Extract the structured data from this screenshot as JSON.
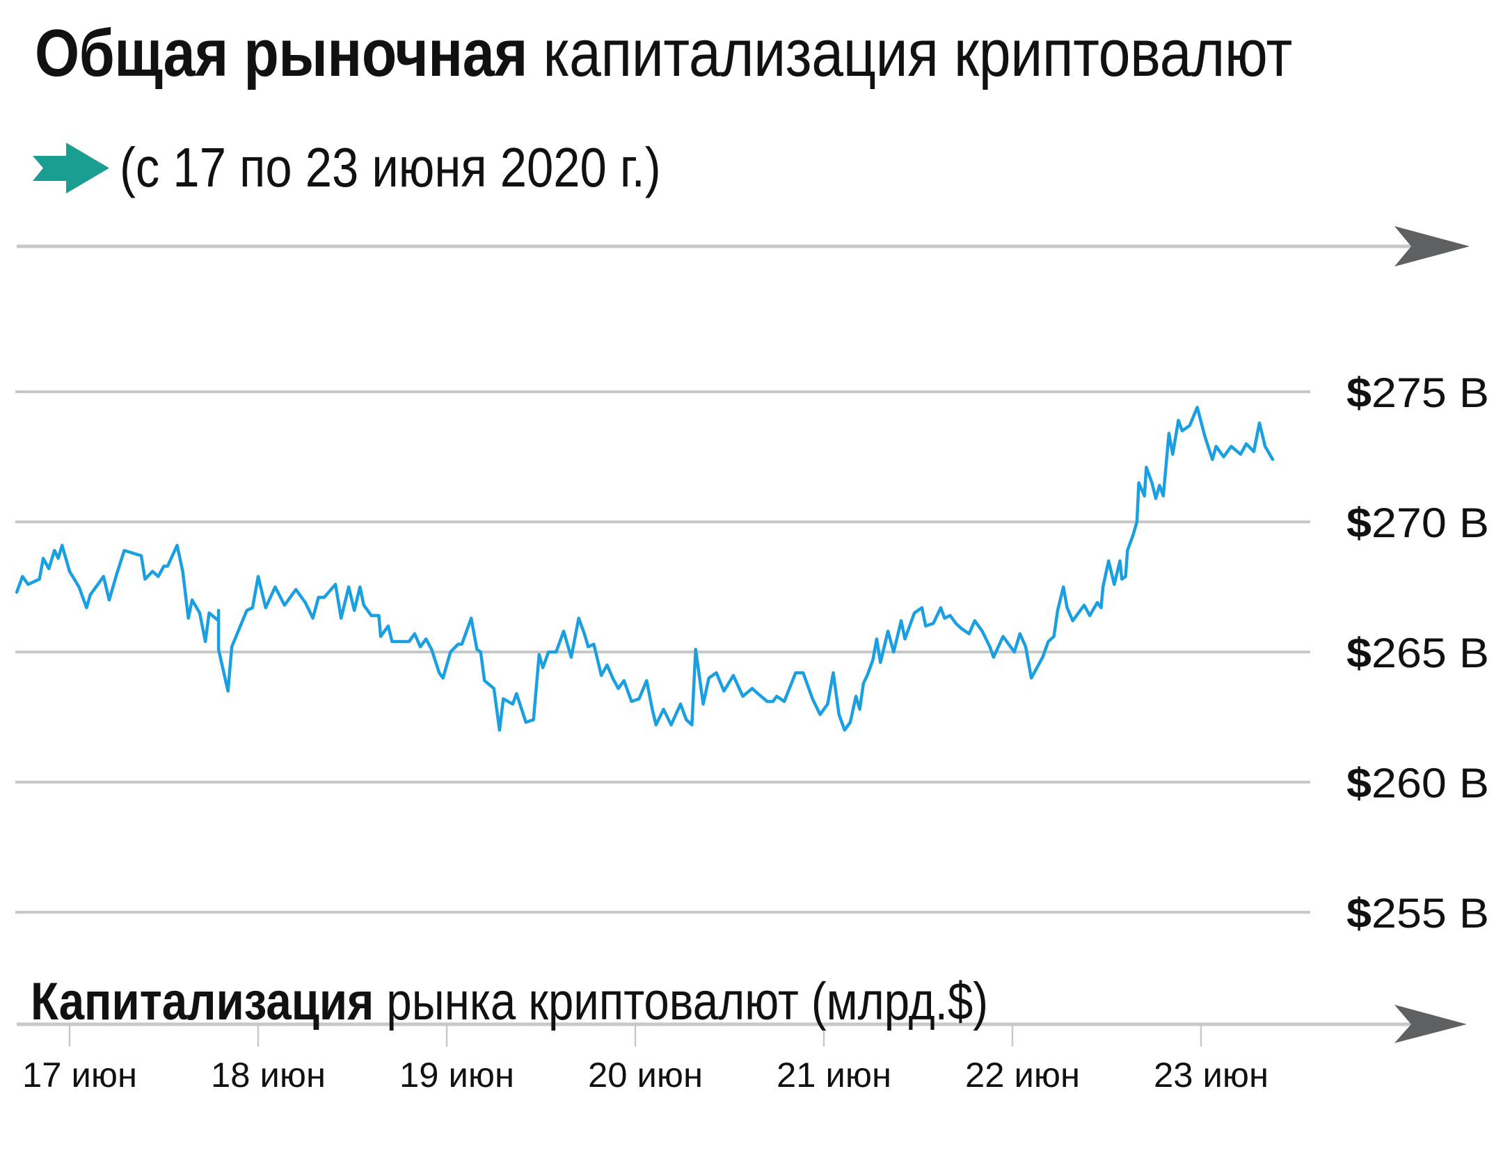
{
  "header": {
    "title_bold": "Общая рыночная",
    "title_light": "капитализация криптовалют",
    "subtitle": "(с 17 по 23 июня 2020 г.)",
    "subtitle_icon": "arrow-right-icon"
  },
  "footer": {
    "caption_bold": "Капитализация",
    "caption_light": "рынка криптовалют (млрд.$)"
  },
  "colors": {
    "line": "#1a9fe0",
    "accent_arrow": "#1a9e91",
    "grid": "#c8c8c8",
    "axis_arrow": "#5f6062",
    "text": "#111111"
  },
  "y_axis": {
    "ticks": [
      {
        "dollar": "$",
        "text": "275 B",
        "value": 275
      },
      {
        "dollar": "$",
        "text": "270 B",
        "value": 270
      },
      {
        "dollar": "$",
        "text": "265 B",
        "value": 265
      },
      {
        "dollar": "$",
        "text": "260 B",
        "value": 260
      },
      {
        "dollar": "$",
        "text": "255 B",
        "value": 255
      }
    ]
  },
  "x_axis": {
    "ticks": [
      "17 июн",
      "18 июн",
      "19 июн",
      "20 июн",
      "21 июн",
      "22 июн",
      "23 июн"
    ]
  },
  "chart_data": {
    "type": "line",
    "title": "Общая рыночная капитализация криптовалют",
    "subtitle": "(с 17 по 23 июня 2020 г.)",
    "xlabel": "Капитализация рынка криптовалют (млрд.$)",
    "ylabel": "",
    "categories": [
      "17 июн",
      "18 июн",
      "19 июн",
      "20 июн",
      "21 июн",
      "22 июн",
      "23 июн"
    ],
    "ylim": [
      255,
      276
    ],
    "y_ticks": [
      255,
      260,
      265,
      270,
      275
    ],
    "grid": true,
    "legend": null,
    "series": [
      {
        "name": "Капитализация рынка криптовалют (млрд.$)",
        "x_day_offset": [
          -0.28,
          -0.25,
          -0.22,
          -0.16,
          -0.14,
          -0.11,
          -0.08,
          -0.06,
          -0.04,
          0.0,
          0.05,
          0.09,
          0.11,
          0.18,
          0.21,
          0.25,
          0.29,
          0.38,
          0.4,
          0.44,
          0.47,
          0.5,
          0.52,
          0.57,
          0.6,
          0.63,
          0.65,
          0.69,
          0.72,
          0.74,
          0.79,
          0.79,
          0.79,
          0.84,
          0.86,
          0.94,
          0.97,
          1.0,
          1.04,
          1.09,
          1.14,
          1.2,
          1.25,
          1.29,
          1.32,
          1.35,
          1.41,
          1.44,
          1.48,
          1.51,
          1.54,
          1.56,
          1.6,
          1.64,
          1.65,
          1.69,
          1.71,
          1.8,
          1.83,
          1.86,
          1.89,
          1.92,
          1.96,
          1.98,
          2.02,
          2.06,
          2.08,
          2.13,
          2.16,
          2.18,
          2.2,
          2.25,
          2.28,
          2.3,
          2.35,
          2.37,
          2.42,
          2.46,
          2.49,
          2.51,
          2.54,
          2.58,
          2.62,
          2.66,
          2.7,
          2.73,
          2.75,
          2.78,
          2.82,
          2.85,
          2.88,
          2.91,
          2.94,
          2.98,
          3.02,
          3.06,
          3.09,
          3.11,
          3.15,
          3.19,
          3.24,
          3.27,
          3.3,
          3.32,
          3.36,
          3.39,
          3.43,
          3.47,
          3.52,
          3.57,
          3.62,
          3.65,
          3.7,
          3.73,
          3.75,
          3.79,
          3.85,
          3.89,
          3.94,
          3.98,
          4.02,
          4.05,
          4.08,
          4.11,
          4.14,
          4.17,
          4.19,
          4.21,
          4.23,
          4.26,
          4.28,
          4.3,
          4.34,
          4.37,
          4.41,
          4.43,
          4.48,
          4.52,
          4.54,
          4.58,
          4.62,
          4.64,
          4.67,
          4.7,
          4.73,
          4.75,
          4.77,
          4.8,
          4.84,
          4.88,
          4.9,
          4.95,
          5.01,
          5.04,
          5.07,
          5.1,
          5.16,
          5.19,
          5.22,
          5.24,
          5.27,
          5.29,
          5.32,
          5.38,
          5.41,
          5.45,
          5.47,
          5.48,
          5.51,
          5.54,
          5.57,
          5.58,
          5.6,
          5.61,
          5.64,
          5.66,
          5.67,
          5.7,
          5.71,
          5.74,
          5.76,
          5.78,
          5.8,
          5.83,
          5.85,
          5.88,
          5.9,
          5.94,
          5.98,
          6.02,
          6.06,
          6.08,
          6.12,
          6.16,
          6.21,
          6.24,
          6.28,
          6.31,
          6.34,
          6.38
        ],
        "values": [
          267.3,
          267.9,
          267.6,
          267.8,
          268.6,
          268.2,
          268.9,
          268.6,
          269.1,
          268.1,
          267.5,
          266.7,
          267.2,
          267.9,
          267.0,
          268.0,
          268.9,
          268.7,
          267.8,
          268.1,
          267.9,
          268.3,
          268.3,
          269.1,
          268.1,
          266.3,
          267.0,
          266.5,
          265.4,
          266.5,
          266.2,
          266.6,
          265.1,
          263.5,
          265.2,
          266.6,
          266.7,
          267.9,
          266.7,
          267.5,
          266.8,
          267.4,
          266.9,
          266.3,
          267.1,
          267.1,
          267.6,
          266.3,
          267.5,
          266.6,
          267.5,
          266.8,
          266.4,
          266.4,
          265.6,
          266.0,
          265.4,
          265.4,
          265.7,
          265.2,
          265.5,
          265.1,
          264.2,
          264.0,
          265.0,
          265.3,
          265.3,
          266.3,
          265.1,
          265.0,
          263.9,
          263.6,
          262.0,
          263.2,
          263.0,
          263.4,
          262.3,
          262.4,
          264.9,
          264.4,
          265.0,
          265.0,
          265.8,
          264.8,
          266.3,
          265.7,
          265.2,
          265.3,
          264.1,
          264.5,
          264.0,
          263.6,
          263.9,
          263.1,
          263.2,
          263.9,
          262.8,
          262.2,
          262.8,
          262.2,
          263.0,
          262.4,
          262.2,
          265.1,
          263.0,
          264.0,
          264.2,
          263.5,
          264.1,
          263.3,
          263.6,
          263.4,
          263.1,
          263.1,
          263.3,
          263.1,
          264.2,
          264.2,
          263.2,
          262.6,
          263.0,
          264.2,
          262.6,
          262.0,
          262.3,
          263.3,
          262.8,
          263.8,
          264.1,
          264.7,
          265.5,
          264.6,
          265.8,
          265.0,
          266.2,
          265.5,
          266.5,
          266.7,
          266.0,
          266.1,
          266.7,
          266.3,
          266.4,
          266.1,
          265.9,
          265.8,
          265.7,
          266.2,
          265.8,
          265.2,
          264.8,
          265.6,
          265.0,
          265.7,
          265.2,
          264.0,
          264.8,
          265.4,
          265.6,
          266.6,
          267.5,
          266.7,
          266.2,
          266.8,
          266.4,
          266.9,
          266.7,
          267.5,
          268.5,
          267.6,
          268.5,
          267.8,
          267.9,
          268.9,
          269.5,
          270.0,
          271.5,
          271.0,
          272.1,
          271.5,
          270.9,
          271.4,
          271.0,
          273.4,
          272.6,
          273.9,
          273.5,
          273.7,
          274.4,
          273.3,
          272.4,
          272.9,
          272.5,
          272.9,
          272.6,
          273.0,
          272.7,
          273.8,
          272.9,
          272.4,
          272.6,
          272.4,
          273.6,
          273.7,
          273.3,
          274.1,
          274.3,
          275.0,
          274.7,
          274.3
        ]
      }
    ]
  }
}
